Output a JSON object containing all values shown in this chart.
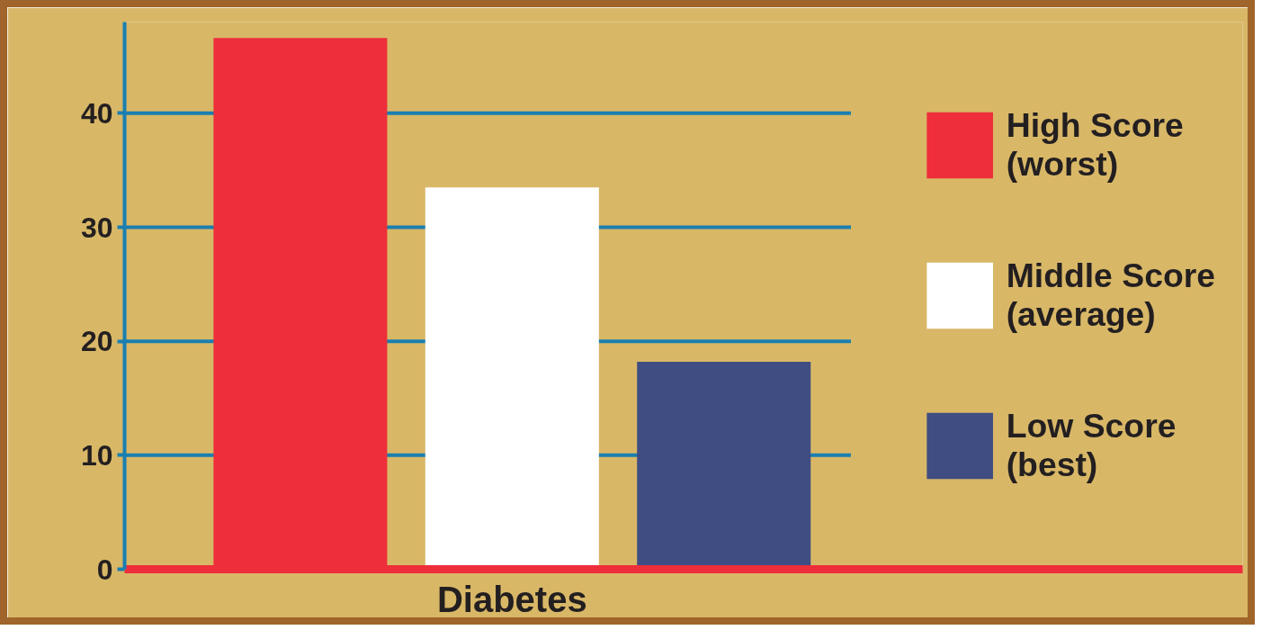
{
  "chart_data": {
    "type": "bar",
    "categories": [
      "Diabetes"
    ],
    "series": [
      {
        "name": "High Score (worst)",
        "color": "#ee2e3a",
        "values": [
          46.6
        ]
      },
      {
        "name": "Middle Score (average)",
        "color": "#ffffff",
        "values": [
          33.5
        ]
      },
      {
        "name": "Low Score (best)",
        "color": "#3f4d82",
        "values": [
          18.2
        ]
      }
    ],
    "ylim": [
      0,
      48
    ],
    "yticks": [
      0,
      10,
      20,
      30,
      40
    ],
    "grid": "y",
    "legend": "right"
  }
}
